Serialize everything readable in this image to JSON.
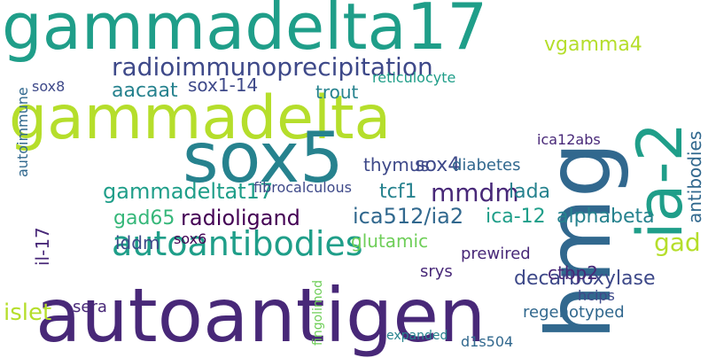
{
  "words": [
    "gammadelta17",
    "hmg",
    "gammadelta",
    "autoantigen",
    "sox5",
    "ia-2",
    "autoantibodies",
    "radioimmunoprecipitation",
    "gammadeltat17",
    "radioligand",
    "ica512/ia2",
    "mmdm",
    "tcf1",
    "decarboxylase",
    "islet",
    "ica-12",
    "alphabeta",
    "gad65",
    "gad",
    "iddm",
    "lada",
    "sox4",
    "sox1-14",
    "aacaat",
    "thymus",
    "vgamma4",
    "antibodies",
    "il-17",
    "sox6",
    "glutamic",
    "diabetes",
    "reticulocyte",
    "trout",
    "prewired",
    "srys",
    "sera",
    "regenotyped",
    "fibrocalculous",
    "ctbp2",
    "ica12abs",
    "hcips",
    "autoimmune",
    "sox8",
    "fingolimod",
    "expanded",
    "d1s504"
  ]
}
